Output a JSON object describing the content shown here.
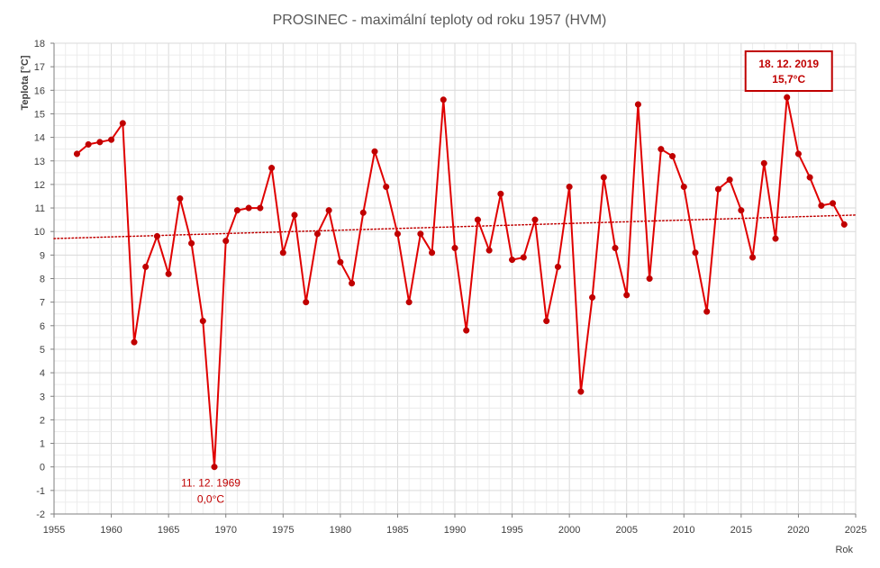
{
  "chart_data": {
    "type": "line",
    "title": "PROSINEC - maximální teploty od roku 1957 (HVM)",
    "xlabel": "Rok",
    "ylabel": "Teplota [°C]",
    "xlim": [
      1955,
      2025
    ],
    "ylim": [
      -2,
      18
    ],
    "x_ticks": [
      1955,
      1960,
      1965,
      1970,
      1975,
      1980,
      1985,
      1990,
      1995,
      2000,
      2005,
      2010,
      2015,
      2020,
      2025
    ],
    "y_ticks": [
      -2,
      -1,
      0,
      1,
      2,
      3,
      4,
      5,
      6,
      7,
      8,
      9,
      10,
      11,
      12,
      13,
      14,
      15,
      16,
      17,
      18
    ],
    "grid": true,
    "series": [
      {
        "color": "#e00000",
        "marker_color": "#c00000",
        "x": [
          1957,
          1958,
          1959,
          1960,
          1961,
          1962,
          1963,
          1964,
          1965,
          1966,
          1967,
          1968,
          1969,
          1970,
          1971,
          1972,
          1973,
          1974,
          1975,
          1976,
          1977,
          1978,
          1979,
          1980,
          1981,
          1982,
          1983,
          1984,
          1985,
          1986,
          1987,
          1988,
          1989,
          1990,
          1991,
          1992,
          1993,
          1994,
          1995,
          1996,
          1997,
          1998,
          1999,
          2000,
          2001,
          2002,
          2003,
          2004,
          2005,
          2006,
          2007,
          2008,
          2009,
          2010,
          2011,
          2012,
          2013,
          2014,
          2015,
          2016,
          2017,
          2018,
          2019,
          2020,
          2021,
          2022,
          2023,
          2024
        ],
        "y": [
          13.3,
          13.7,
          13.8,
          13.9,
          14.6,
          5.3,
          8.5,
          9.8,
          8.2,
          11.4,
          9.5,
          6.2,
          0.0,
          9.6,
          10.9,
          11.0,
          11.0,
          12.7,
          9.1,
          10.7,
          7.0,
          9.9,
          10.9,
          8.7,
          7.8,
          10.8,
          13.4,
          11.9,
          9.9,
          7.0,
          9.9,
          9.1,
          15.6,
          9.3,
          5.8,
          10.5,
          9.2,
          11.6,
          8.8,
          8.9,
          10.5,
          6.2,
          8.5,
          11.9,
          3.2,
          7.2,
          12.3,
          9.3,
          7.3,
          15.4,
          8.0,
          13.5,
          13.2,
          11.9,
          9.1,
          6.6,
          11.8,
          12.2,
          10.9,
          8.9,
          12.9,
          9.7,
          15.7,
          13.3,
          12.3,
          11.1,
          11.2,
          10.3
        ]
      }
    ],
    "trendline": {
      "style": "dotted",
      "color": "#c00000",
      "x": [
        1955,
        2025
      ],
      "y": [
        9.7,
        10.7
      ]
    },
    "annotations": [
      {
        "x": 1969,
        "y": 0.0,
        "date": "11. 12. 1969",
        "value": "0,0°C",
        "boxed": false
      },
      {
        "x": 2019,
        "y": 15.7,
        "date": "18. 12. 2019",
        "value": "15,7°C",
        "boxed": true
      }
    ]
  }
}
